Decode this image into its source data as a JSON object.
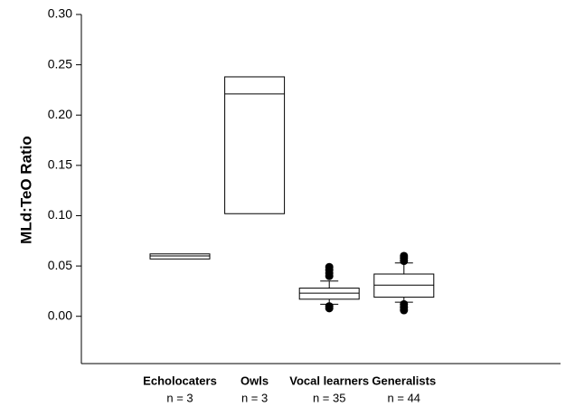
{
  "chart_data": {
    "type": "box",
    "y_label": "MLd:TeO Ratio",
    "categories": [
      "Echolocaters",
      "Owls",
      "Vocal learners",
      "Generalists"
    ],
    "sample_labels": [
      "n = 3",
      "n = 3",
      "n = 35",
      "n = 44"
    ],
    "boxes": [
      {
        "q1": 0.057,
        "median": 0.06,
        "q3": 0.062,
        "whisker_low": null,
        "whisker_high": null,
        "outliers": []
      },
      {
        "q1": 0.102,
        "median": 0.221,
        "q3": 0.238,
        "whisker_low": null,
        "whisker_high": null,
        "outliers": []
      },
      {
        "q1": 0.017,
        "median": 0.023,
        "q3": 0.028,
        "whisker_low": 0.012,
        "whisker_high": 0.035,
        "outliers": [
          0.04,
          0.043,
          0.046,
          0.049,
          0.008,
          0.01
        ]
      },
      {
        "q1": 0.019,
        "median": 0.031,
        "q3": 0.042,
        "whisker_low": 0.014,
        "whisker_high": 0.053,
        "outliers": [
          0.055,
          0.058,
          0.06,
          0.006,
          0.009,
          0.012
        ]
      }
    ],
    "color": "#000000",
    "ylim": [
      -0.047,
      0.3
    ],
    "yticks": [
      {
        "value": 0,
        "label": "0.00"
      },
      0.05,
      {
        "value": 0.1,
        "label": "0.10"
      },
      0.15,
      {
        "value": 0.2,
        "label": "0.20"
      },
      0.25,
      {
        "value": 0.3,
        "label": "0.30"
      }
    ]
  }
}
